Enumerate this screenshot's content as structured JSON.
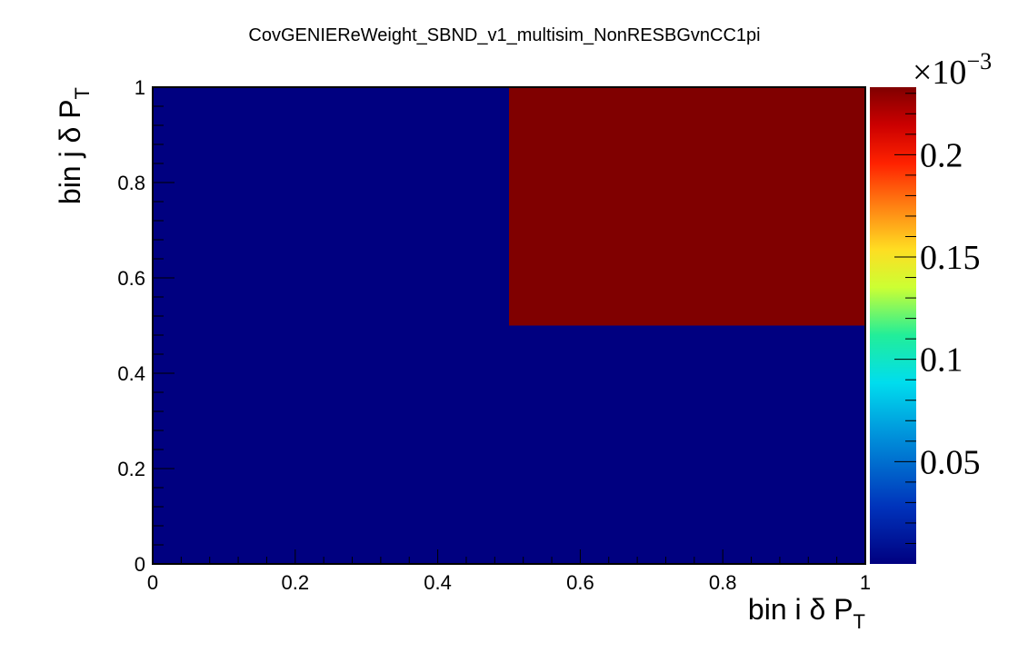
{
  "chart_data": {
    "type": "heatmap",
    "title": "CovGENIEReWeight_SBND_v1_multisim_NonRESBGvnCC1pi",
    "xlabel": "bin i δ P",
    "xlabel_sub": "T",
    "ylabel": "bin j δ P",
    "ylabel_sub": "T",
    "xlim": [
      0,
      1
    ],
    "ylim": [
      0,
      1
    ],
    "x_ticks": [
      "0",
      "0.2",
      "0.4",
      "0.6",
      "0.8",
      "1"
    ],
    "y_ticks": [
      "0",
      "0.2",
      "0.4",
      "0.6",
      "0.8",
      "1"
    ],
    "x_bin_edges": [
      0,
      0.5,
      1
    ],
    "y_bin_edges": [
      0,
      0.5,
      1
    ],
    "z": [
      [
        0.0,
        0.0
      ],
      [
        0.0,
        0.000233
      ]
    ],
    "colorbar": {
      "zlim": [
        0,
        0.000233
      ],
      "multiplier": "×10",
      "exponent": "−3",
      "tick_values": [
        5e-05,
        0.0001,
        0.00015,
        0.0002
      ],
      "tick_labels": [
        "0.05",
        "0.1",
        "0.15",
        "0.2"
      ],
      "palette": "rainbow (dark blue to dark red)"
    },
    "grid": false,
    "legend": "none"
  }
}
